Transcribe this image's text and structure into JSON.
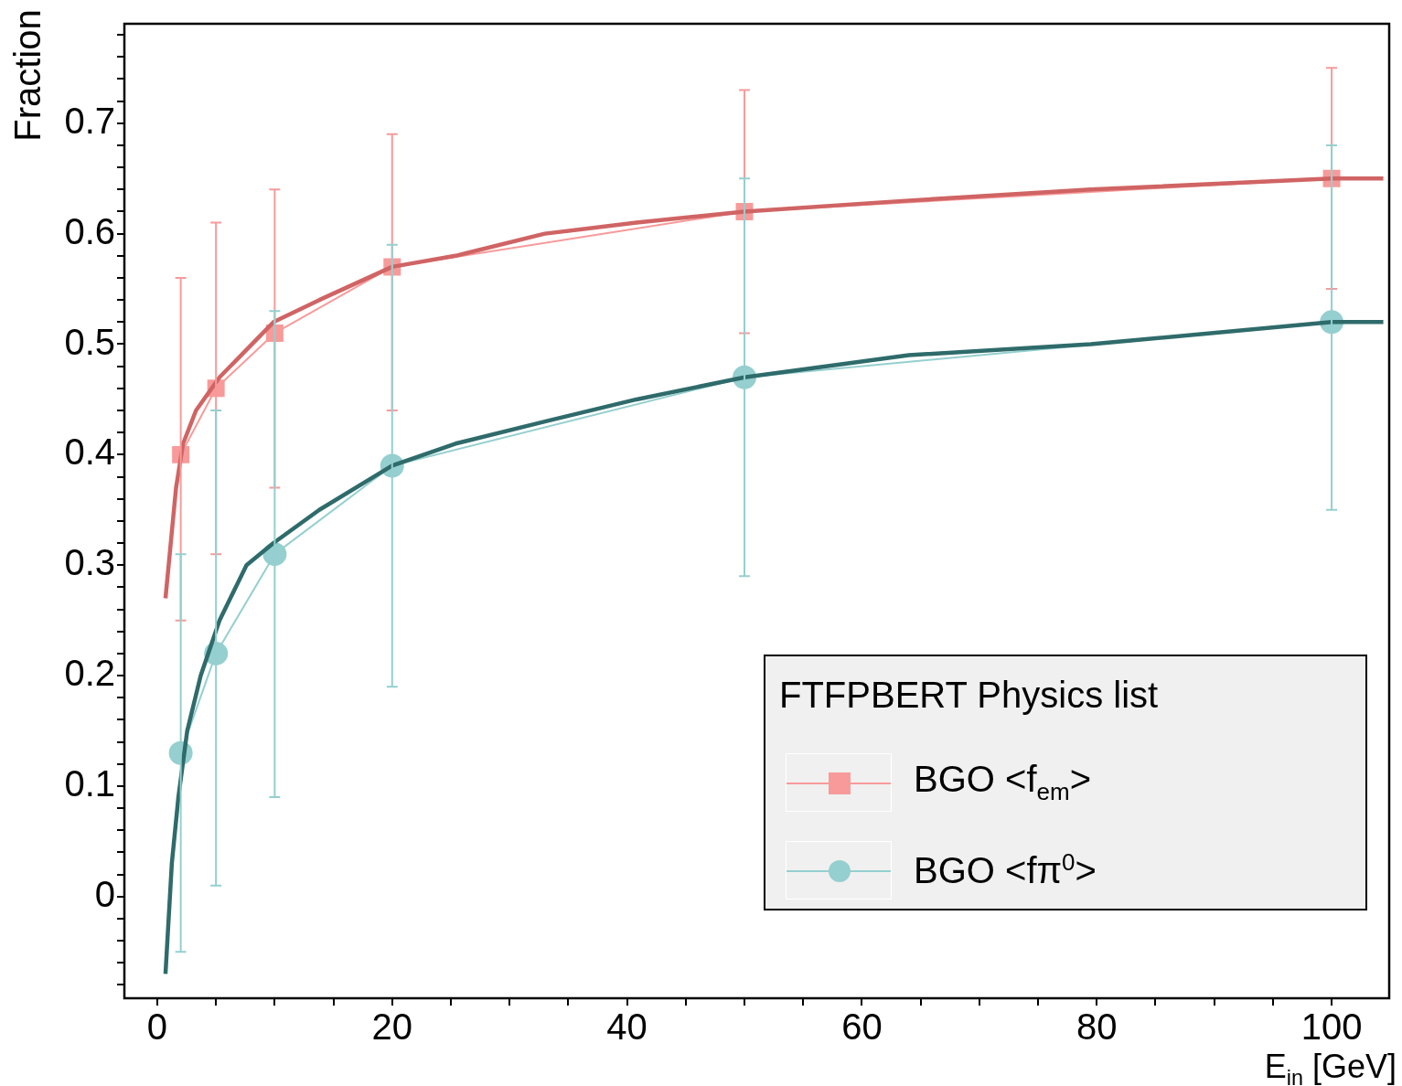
{
  "chart_data": {
    "type": "line",
    "xlabel": "E$_{in}$ [GeV]",
    "ylabel": "Fraction",
    "legend_title": "FTFPBERT Physics list",
    "xlim": [
      -2.8,
      104.9
    ],
    "ylim": [
      -0.092,
      0.79
    ],
    "xticks": [
      0,
      {
        "value": 5,
        "label": null
      },
      {
        "value": 10,
        "label": null
      },
      {
        "value": 15,
        "label": null
      },
      20,
      {
        "value": 25,
        "label": null
      },
      {
        "value": 30,
        "label": null
      },
      {
        "value": 35,
        "label": null
      },
      40,
      {
        "value": 45,
        "label": null
      },
      {
        "value": 50,
        "label": null
      },
      {
        "value": 55,
        "label": null
      },
      60,
      {
        "value": 65,
        "label": null
      },
      {
        "value": 70,
        "label": null
      },
      {
        "value": 75,
        "label": null
      },
      80,
      {
        "value": 85,
        "label": null
      },
      {
        "value": 90,
        "label": null
      },
      {
        "value": 95,
        "label": null
      },
      100
    ],
    "yticks": [
      {
        "value": -0.08,
        "label": null
      },
      {
        "value": -0.06,
        "label": null
      },
      {
        "value": -0.04,
        "label": null
      },
      {
        "value": -0.02,
        "label": null
      },
      0,
      {
        "value": 0.02,
        "label": null
      },
      {
        "value": 0.04,
        "label": null
      },
      {
        "value": 0.06,
        "label": null
      },
      {
        "value": 0.08,
        "label": null
      },
      0.1,
      {
        "value": 0.12,
        "label": null
      },
      {
        "value": 0.14,
        "label": null
      },
      {
        "value": 0.16,
        "label": null
      },
      {
        "value": 0.18,
        "label": null
      },
      0.2,
      {
        "value": 0.22,
        "label": null
      },
      {
        "value": 0.24,
        "label": null
      },
      {
        "value": 0.26,
        "label": null
      },
      {
        "value": 0.28,
        "label": null
      },
      0.3,
      {
        "value": 0.32,
        "label": null
      },
      {
        "value": 0.34,
        "label": null
      },
      {
        "value": 0.36,
        "label": null
      },
      {
        "value": 0.38,
        "label": null
      },
      0.4,
      {
        "value": 0.42,
        "label": null
      },
      {
        "value": 0.44,
        "label": null
      },
      {
        "value": 0.46,
        "label": null
      },
      {
        "value": 0.48,
        "label": null
      },
      0.5,
      {
        "value": 0.52,
        "label": null
      },
      {
        "value": 0.54,
        "label": null
      },
      {
        "value": 0.56,
        "label": null
      },
      {
        "value": 0.58,
        "label": null
      },
      0.6,
      {
        "value": 0.62,
        "label": null
      },
      {
        "value": 0.64,
        "label": null
      },
      {
        "value": 0.66,
        "label": null
      },
      {
        "value": 0.68,
        "label": null
      },
      0.7,
      {
        "value": 0.72,
        "label": null
      },
      {
        "value": 0.74,
        "label": null
      },
      {
        "value": 0.76,
        "label": null
      },
      {
        "value": 0.78,
        "label": null
      }
    ],
    "grid": false,
    "legend": "bottom right",
    "series": [
      {
        "type": "line",
        "color": "#d06464",
        "marker": "none",
        "x": [
          0.7,
          1.6,
          2.2,
          3.3,
          5.3,
          9.9,
          13.8,
          20,
          25.4,
          33,
          40.8,
          50,
          64,
          79.5,
          100,
          104.4
        ],
        "values": [
          0.27,
          0.37,
          0.41,
          0.44,
          0.47,
          0.52,
          0.54,
          0.57,
          0.58,
          0.6,
          0.61,
          0.62,
          0.63,
          0.64,
          0.65,
          0.65
        ]
      },
      {
        "type": "line",
        "color": "#2f6b6b",
        "marker": "none",
        "x": [
          0.7,
          1.24,
          1.8,
          2.55,
          3.7,
          5.3,
          7.6,
          9.9,
          13.8,
          20,
          25.4,
          33,
          40.8,
          50,
          64,
          79.5,
          100,
          104.4
        ],
        "values": [
          -0.07,
          0.03,
          0.09,
          0.15,
          0.2,
          0.25,
          0.3,
          0.32,
          0.35,
          0.39,
          0.41,
          0.43,
          0.45,
          0.47,
          0.49,
          0.5,
          0.52,
          0.52
        ]
      },
      {
        "type": "line",
        "name": "BGO <f$_{em}$>",
        "color": "#f89a9a",
        "marker": "square",
        "x": [
          2,
          5,
          10,
          20,
          50,
          100
        ],
        "values": [
          0.4,
          0.46,
          0.51,
          0.57,
          0.62,
          0.65
        ],
        "errors": [
          [
            0.25,
            0.56
          ],
          [
            0.31,
            0.61
          ],
          [
            0.37,
            0.64
          ],
          [
            0.44,
            0.69
          ],
          [
            0.51,
            0.73
          ],
          [
            0.55,
            0.75
          ]
        ]
      },
      {
        "type": "line",
        "name": "BGO <fπ$^{0}$>",
        "color": "#95cfcf",
        "marker": "circle",
        "x": [
          2,
          5,
          10,
          20,
          50,
          100
        ],
        "values": [
          0.13,
          0.22,
          0.31,
          0.39,
          0.47,
          0.52
        ],
        "errors": [
          [
            -0.05,
            0.31
          ],
          [
            0.01,
            0.44
          ],
          [
            0.09,
            0.53
          ],
          [
            0.19,
            0.59
          ],
          [
            0.29,
            0.65
          ],
          [
            0.35,
            0.68
          ]
        ]
      }
    ]
  }
}
